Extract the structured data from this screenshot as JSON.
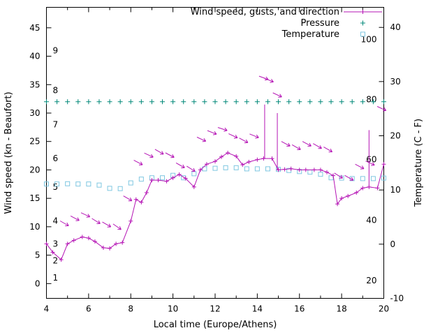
{
  "chart_data": {
    "type": "line",
    "title": "",
    "xlabel": "Local time (Europe/Athens)",
    "ylabel_left": "Wind speed (kn - Beaufort)",
    "ylabel_right": "Temperature (C - F)",
    "background": "#ffffff",
    "axis_color": "#000000",
    "legend_position": "top-right-inside",
    "x_range": [
      4,
      20
    ],
    "x_major_ticks": [
      4,
      6,
      8,
      10,
      12,
      14,
      16,
      18,
      20
    ],
    "x_minor_ticks": [
      5,
      7,
      9,
      11,
      13,
      15,
      17,
      19
    ],
    "left_axis": {
      "range": [
        -2.6,
        48.6
      ],
      "major_ticks": [
        0,
        5,
        10,
        15,
        20,
        25,
        30,
        35,
        40,
        45
      ]
    },
    "right_axis": {
      "range": [
        -10,
        43.7
      ],
      "major_ticks": [
        -10,
        0,
        10,
        20,
        30,
        40
      ]
    },
    "beaufort_labels": [
      {
        "label": "1",
        "kn": 1
      },
      {
        "label": "2",
        "kn": 4
      },
      {
        "label": "3",
        "kn": 7
      },
      {
        "label": "4",
        "kn": 11
      },
      {
        "label": "5",
        "kn": 17
      },
      {
        "label": "6",
        "kn": 22
      },
      {
        "label": "7",
        "kn": 28
      },
      {
        "label": "8",
        "kn": 34
      },
      {
        "label": "9",
        "kn": 41
      }
    ],
    "fahrenheit_labels": [
      {
        "label": "20",
        "c": -6.7
      },
      {
        "label": "40",
        "c": 4.4
      },
      {
        "label": "60",
        "c": 15.6
      },
      {
        "label": "80",
        "c": 26.7
      },
      {
        "label": "100",
        "c": 37.8
      }
    ],
    "series": {
      "wind": {
        "name": "Wind speed, gusts, and direction",
        "color": "#b515b5",
        "axis": "left",
        "points": [
          [
            4.0,
            7
          ],
          [
            4.3,
            5.5
          ],
          [
            4.7,
            4.2
          ],
          [
            5.0,
            7
          ],
          [
            5.3,
            7.6
          ],
          [
            5.7,
            8.2
          ],
          [
            6.0,
            8.0
          ],
          [
            6.3,
            7.4
          ],
          [
            6.7,
            6.3
          ],
          [
            7.0,
            6.2
          ],
          [
            7.3,
            7.0
          ],
          [
            7.6,
            7.2
          ],
          [
            8.0,
            11.0
          ],
          [
            8.25,
            14.8
          ],
          [
            8.5,
            14.3
          ],
          [
            8.75,
            16.0
          ],
          [
            9.0,
            18.2
          ],
          [
            9.3,
            18.2
          ],
          [
            9.7,
            18.0
          ],
          [
            10.0,
            18.6
          ],
          [
            10.3,
            19.2
          ],
          [
            10.6,
            18.5
          ],
          [
            11.0,
            17.0
          ],
          [
            11.3,
            20.0
          ],
          [
            11.6,
            21.0
          ],
          [
            12.0,
            21.5
          ],
          [
            12.3,
            22.3
          ],
          [
            12.6,
            23.0
          ],
          [
            13.0,
            22.4
          ],
          [
            13.3,
            20.9
          ],
          [
            13.6,
            21.4
          ],
          [
            14.0,
            21.8
          ],
          [
            14.3,
            22.0
          ],
          [
            14.7,
            22.0
          ],
          [
            15.0,
            20.0
          ],
          [
            15.3,
            20.1
          ],
          [
            15.6,
            20.2
          ],
          [
            16.0,
            20.0
          ],
          [
            16.3,
            20.0
          ],
          [
            16.7,
            20.0
          ],
          [
            17.0,
            20.0
          ],
          [
            17.3,
            19.6
          ],
          [
            17.6,
            19.0
          ],
          [
            17.8,
            14.0
          ],
          [
            18.0,
            15.0
          ],
          [
            18.3,
            15.4
          ],
          [
            18.7,
            16.0
          ],
          [
            19.0,
            16.8
          ],
          [
            19.3,
            17.0
          ],
          [
            19.7,
            16.8
          ],
          [
            20.0,
            21.0
          ]
        ],
        "gust_spikes": [
          [
            14.35,
            22,
            31.5
          ],
          [
            14.95,
            20,
            30
          ],
          [
            19.3,
            17,
            27
          ]
        ],
        "direction_arrows": [
          [
            4.85,
            10.6,
            30
          ],
          [
            5.35,
            11.5,
            28
          ],
          [
            5.85,
            12.1,
            25
          ],
          [
            6.35,
            11.0,
            32
          ],
          [
            6.85,
            10.4,
            30
          ],
          [
            7.35,
            10.0,
            35
          ],
          [
            7.85,
            15.0,
            30
          ],
          [
            8.35,
            21.3,
            28
          ],
          [
            8.85,
            22.6,
            25
          ],
          [
            9.35,
            23.2,
            30
          ],
          [
            9.85,
            22.6,
            28
          ],
          [
            10.35,
            20.8,
            30
          ],
          [
            10.85,
            20.2,
            32
          ],
          [
            11.35,
            25.4,
            25
          ],
          [
            11.85,
            26.6,
            22
          ],
          [
            12.35,
            27.2,
            18
          ],
          [
            12.85,
            26.0,
            25
          ],
          [
            13.35,
            25.2,
            28
          ],
          [
            13.85,
            26.0,
            22
          ],
          [
            14.3,
            36.2,
            20
          ],
          [
            14.55,
            35.8,
            22
          ],
          [
            14.95,
            33.2,
            25
          ],
          [
            15.35,
            24.6,
            28
          ],
          [
            15.85,
            24.0,
            30
          ],
          [
            16.35,
            24.6,
            28
          ],
          [
            16.85,
            24.2,
            30
          ],
          [
            17.35,
            23.6,
            30
          ],
          [
            17.85,
            19.0,
            32
          ],
          [
            18.35,
            18.6,
            30
          ],
          [
            18.85,
            20.6,
            28
          ],
          [
            19.35,
            21.2,
            25
          ],
          [
            19.9,
            30.8,
            25
          ]
        ]
      },
      "pressure": {
        "name": "Pressure",
        "color": "#008878",
        "axis": "left",
        "points": [
          [
            4,
            32
          ],
          [
            4.5,
            32
          ],
          [
            5,
            32
          ],
          [
            5.5,
            32
          ],
          [
            6,
            32
          ],
          [
            6.5,
            32
          ],
          [
            7,
            32
          ],
          [
            7.5,
            32
          ],
          [
            8,
            32
          ],
          [
            8.5,
            32
          ],
          [
            9,
            32
          ],
          [
            9.5,
            32
          ],
          [
            10,
            32
          ],
          [
            10.5,
            32
          ],
          [
            11,
            32
          ],
          [
            11.5,
            32
          ],
          [
            12,
            32
          ],
          [
            12.5,
            32
          ],
          [
            13,
            32
          ],
          [
            13.5,
            32
          ],
          [
            14,
            32
          ],
          [
            14.5,
            32
          ],
          [
            15,
            32
          ],
          [
            15.5,
            32
          ],
          [
            16,
            32
          ],
          [
            16.5,
            32
          ],
          [
            17,
            32
          ],
          [
            17.5,
            32
          ],
          [
            18,
            32
          ],
          [
            18.5,
            32
          ],
          [
            19,
            32
          ],
          [
            19.5,
            32
          ],
          [
            20,
            32
          ]
        ]
      },
      "temperature": {
        "name": "Temperature",
        "color": "#7fc7e1",
        "axis": "right",
        "points": [
          [
            4.0,
            11.1
          ],
          [
            4.5,
            11.1
          ],
          [
            5.0,
            11.15
          ],
          [
            5.5,
            11.1
          ],
          [
            6.0,
            11.1
          ],
          [
            6.5,
            10.9
          ],
          [
            7.0,
            10.3
          ],
          [
            7.5,
            10.25
          ],
          [
            8.0,
            11.3
          ],
          [
            8.5,
            12.0
          ],
          [
            9.0,
            12.25
          ],
          [
            9.5,
            12.25
          ],
          [
            10.0,
            12.7
          ],
          [
            10.5,
            12.25
          ],
          [
            11.0,
            13.0
          ],
          [
            11.5,
            13.9
          ],
          [
            12.0,
            14.0
          ],
          [
            12.5,
            14.1
          ],
          [
            13.0,
            14.1
          ],
          [
            13.5,
            13.9
          ],
          [
            14.0,
            13.9
          ],
          [
            14.5,
            13.9
          ],
          [
            15.0,
            13.8
          ],
          [
            15.5,
            13.6
          ],
          [
            16.0,
            13.4
          ],
          [
            16.5,
            13.3
          ],
          [
            17.0,
            12.9
          ],
          [
            17.5,
            12.25
          ],
          [
            18.0,
            12.2
          ],
          [
            18.5,
            12.1
          ],
          [
            19.0,
            12.1
          ],
          [
            19.5,
            12.1
          ],
          [
            20.0,
            12.2
          ]
        ]
      }
    }
  }
}
